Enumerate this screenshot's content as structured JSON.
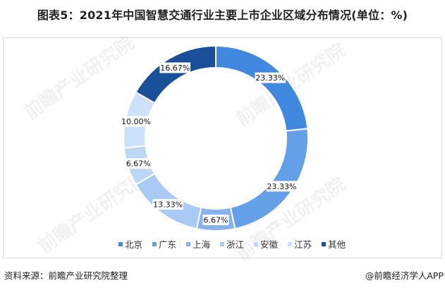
{
  "title": "图表5：2021年中国智慧交通行业主要上市企业区域分布情况(单位：%)",
  "chart_data": {
    "type": "pie",
    "subtype": "donut",
    "title": "图表5：2021年中国智慧交通行业主要上市企业区域分布情况(单位：%)",
    "unit": "%",
    "start_angle": "12 o'clock, clockwise",
    "categories": [
      "北京",
      "广东",
      "上海",
      "浙江",
      "安徽",
      "江苏",
      "其他"
    ],
    "values": [
      23.33,
      23.33,
      6.67,
      13.33,
      6.67,
      10.0,
      16.67
    ],
    "labels": [
      "23.33%",
      "23.33%",
      "6.67%",
      "13.33%",
      "6.67%",
      "10.00%",
      "16.67%"
    ],
    "colors": [
      "#4188e0",
      "#63a0e8",
      "#86b3ee",
      "#a8caf4",
      "#bdd7f7",
      "#cde2fa",
      "#1a4f9a"
    ],
    "legend_position": "bottom"
  },
  "legend": {
    "items": [
      {
        "label": "北京",
        "color": "#4188e0"
      },
      {
        "label": "广东",
        "color": "#63a0e8"
      },
      {
        "label": "上海",
        "color": "#86b3ee"
      },
      {
        "label": "浙江",
        "color": "#a8caf4"
      },
      {
        "label": "安徽",
        "color": "#bdd7f7"
      },
      {
        "label": "江苏",
        "color": "#cde2fa"
      },
      {
        "label": "其他",
        "color": "#1a4f9a"
      }
    ]
  },
  "watermark": "前瞻产业研究院",
  "footer": {
    "source": "资料来源：前瞻产业研究院整理",
    "credit": "@前瞻经济学人APP"
  }
}
